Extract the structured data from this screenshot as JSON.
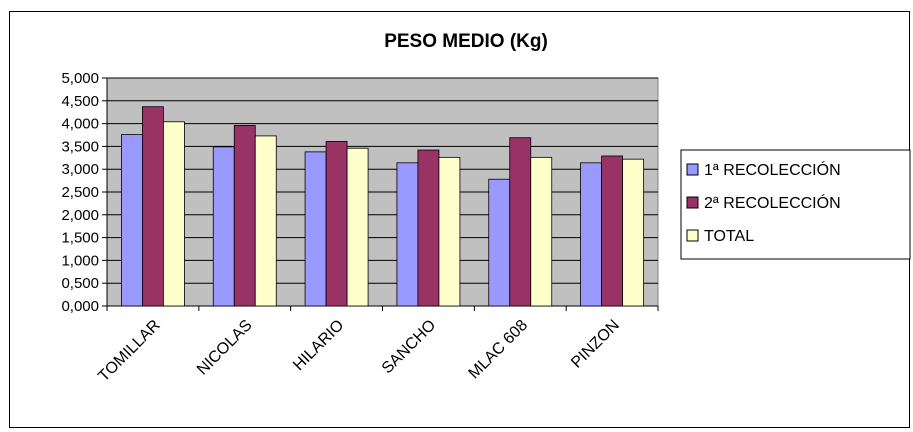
{
  "chart_data": {
    "type": "bar",
    "title": "PESO MEDIO (Kg)",
    "xlabel": "",
    "ylabel": "",
    "categories": [
      "TOMILLAR",
      "NICOLAS",
      "HILARIO",
      "SANCHO",
      "MLAC 608",
      "PINZON"
    ],
    "series": [
      {
        "name": "1ª RECOLECCIÓN",
        "values": [
          3.76,
          3.49,
          3.38,
          3.14,
          2.78,
          3.14
        ],
        "color": "#9999ff"
      },
      {
        "name": "2ª RECOLECCIÓN",
        "values": [
          4.37,
          3.96,
          3.61,
          3.42,
          3.69,
          3.29
        ],
        "color": "#993366"
      },
      {
        "name": "TOTAL",
        "values": [
          4.04,
          3.73,
          3.46,
          3.26,
          3.26,
          3.22
        ],
        "color": "#ffffcc"
      }
    ],
    "ylim": [
      0,
      5
    ],
    "yticks": [
      "0,000",
      "0,500",
      "1,000",
      "1,500",
      "2,000",
      "2,500",
      "3,000",
      "3,500",
      "4,000",
      "4,500",
      "5,000"
    ],
    "grid": true,
    "plot_background": "#c0c0c0",
    "legend_position": "right"
  }
}
